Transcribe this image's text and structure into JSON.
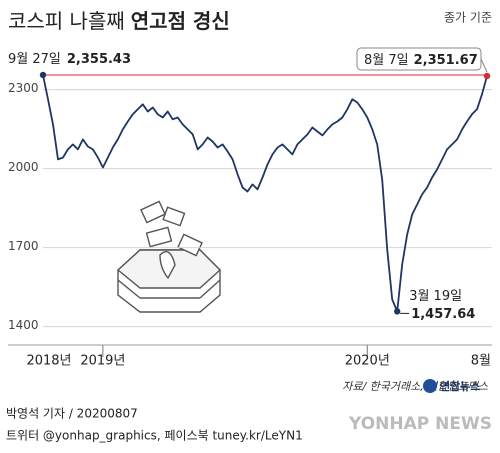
{
  "chart_data": {
    "type": "line",
    "title": [
      "코스피 나흘째",
      "연고점 경신"
    ],
    "subtitle": "종가 기준",
    "color": "#1f3563",
    "ref_color": "#d9283a",
    "grid": true,
    "ylim": [
      1330,
      2420
    ],
    "yticks": [
      1400,
      1700,
      2000,
      2300
    ],
    "categories": [
      "2018년",
      null,
      null,
      null,
      null,
      null,
      null,
      null,
      null,
      null,
      null,
      null,
      "2019년",
      null,
      null,
      null,
      null,
      null,
      null,
      null,
      null,
      null,
      null,
      null,
      null,
      null,
      null,
      null,
      null,
      null,
      null,
      null,
      null,
      null,
      null,
      null,
      null,
      null,
      null,
      null,
      null,
      null,
      null,
      null,
      null,
      null,
      null,
      null,
      null,
      null,
      null,
      null,
      null,
      null,
      null,
      null,
      null,
      null,
      null,
      null,
      null,
      null,
      null,
      null,
      null,
      "2020년",
      null,
      null,
      null,
      null,
      null,
      null,
      null,
      null,
      null,
      null,
      null,
      null,
      null,
      null,
      null,
      null,
      null,
      null,
      null,
      null,
      null,
      null,
      null,
      "8월"
    ],
    "values": [
      2355.43,
      2263,
      2168,
      2035,
      2042,
      2073,
      2092,
      2073,
      2111,
      2084,
      2073,
      2042,
      2004,
      2042,
      2080,
      2111,
      2149,
      2179,
      2206,
      2225,
      2244,
      2217,
      2232,
      2206,
      2194,
      2217,
      2187,
      2194,
      2168,
      2149,
      2130,
      2073,
      2092,
      2118,
      2103,
      2080,
      2092,
      2065,
      2035,
      1978,
      1928,
      1913,
      1940,
      1921,
      1966,
      2016,
      2054,
      2080,
      2092,
      2073,
      2054,
      2092,
      2111,
      2130,
      2156,
      2141,
      2126,
      2149,
      2168,
      2179,
      2194,
      2225,
      2263,
      2251,
      2225,
      2194,
      2149,
      2092,
      1958,
      1693,
      1503,
      1457.64,
      1636,
      1750,
      1826,
      1864,
      1902,
      1928,
      1966,
      1997,
      2035,
      2073,
      2092,
      2111,
      2149,
      2179,
      2206,
      2225,
      2282,
      2351.67
    ],
    "annotations": [
      {
        "index": 0,
        "label": "9월 27일",
        "value_label": "2,355.43"
      },
      {
        "index": 89,
        "label": "8월 7일",
        "value_label": "2,351.67"
      },
      {
        "index": 71,
        "label": "3월 19일",
        "value_label": "1,457.64"
      }
    ],
    "source": "자료/ 한국거래소, 연합인포맥스",
    "logo": "연합뉴스",
    "byline": "박영석 기자 / 20200807",
    "social": "트위터 @yonhap_graphics, 페이스북 tuney.kr/LeYN1",
    "watermark": "YONHAP NEWS"
  }
}
